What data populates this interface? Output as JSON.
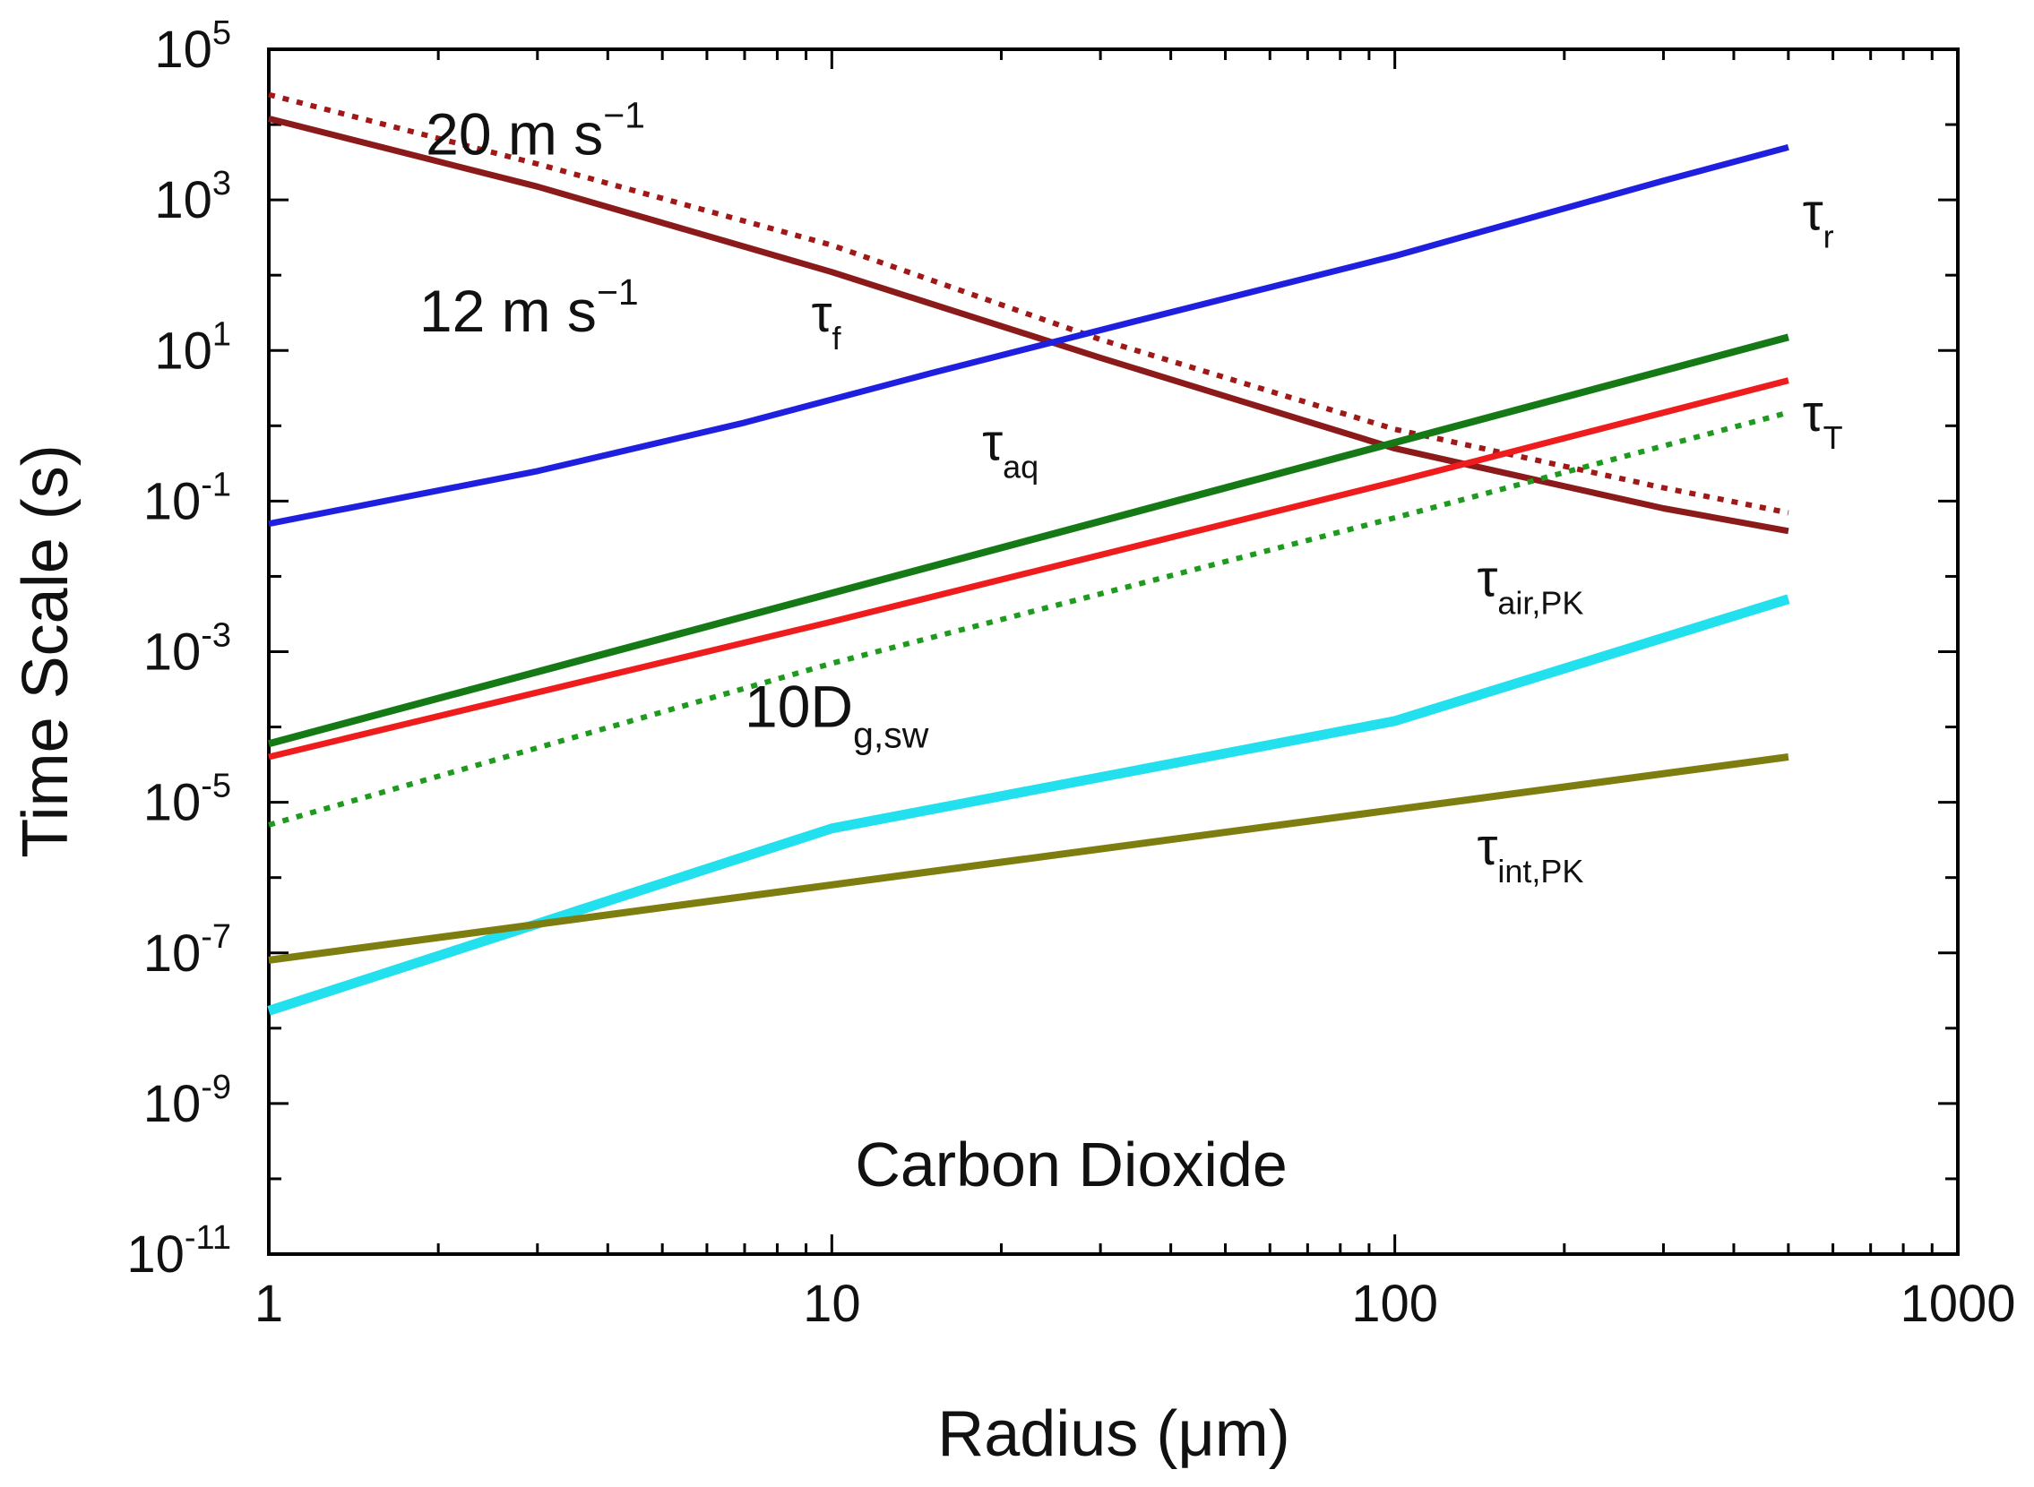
{
  "chart_data": {
    "type": "line",
    "title": "",
    "xlabel": "Radius (μm)",
    "ylabel": "Time Scale (s)",
    "xscale": "log",
    "yscale": "log",
    "xlim": [
      1,
      1000
    ],
    "ylim": [
      1e-11,
      100000
    ],
    "x_ticks": [
      {
        "value": 1,
        "label": "1"
      },
      {
        "value": 10,
        "label": "10"
      },
      {
        "value": 100,
        "label": "100"
      },
      {
        "value": 1000,
        "label": "1000"
      }
    ],
    "y_ticks": [
      {
        "value": 1e-11,
        "mantissa": "10",
        "exp": "-11"
      },
      {
        "value": 1e-09,
        "mantissa": "10",
        "exp": "-9"
      },
      {
        "value": 1e-07,
        "mantissa": "10",
        "exp": "-7"
      },
      {
        "value": 1e-05,
        "mantissa": "10",
        "exp": "-5"
      },
      {
        "value": 0.001,
        "mantissa": "10",
        "exp": "-3"
      },
      {
        "value": 0.1,
        "mantissa": "10",
        "exp": "-1"
      },
      {
        "value": 10,
        "mantissa": "10",
        "exp": "1"
      },
      {
        "value": 1000,
        "mantissa": "10",
        "exp": "3"
      },
      {
        "value": 100000,
        "mantissa": "10",
        "exp": "5"
      }
    ],
    "series": [
      {
        "name": "tau_f_20",
        "color": "#a01818",
        "dash": "dotted",
        "width": 6,
        "x": [
          1,
          3,
          10,
          30,
          100,
          300,
          500
        ],
        "y": [
          25000,
          3000,
          250,
          14,
          0.9,
          0.15,
          0.07
        ]
      },
      {
        "name": "tau_f_12",
        "color": "#8b1a1a",
        "dash": "solid",
        "width": 7,
        "x": [
          1,
          3,
          10,
          30,
          100,
          300,
          500
        ],
        "y": [
          12000,
          1500,
          110,
          8,
          0.5,
          0.08,
          0.04
        ]
      },
      {
        "name": "tau_r",
        "color": "#1f1fe0",
        "dash": "solid",
        "width": 7,
        "x": [
          1,
          3,
          7,
          15,
          35,
          100,
          300,
          500
        ],
        "y": [
          0.05,
          0.25,
          1.1,
          5,
          25,
          180,
          1800,
          5000
        ]
      },
      {
        "name": "tau_aq",
        "color": "#157a15",
        "dash": "solid",
        "width": 8,
        "x": [
          1,
          10,
          100,
          500
        ],
        "y": [
          6e-05,
          0.006,
          0.6,
          15
        ]
      },
      {
        "name": "tau_T",
        "color": "#ee1c1c",
        "dash": "solid",
        "width": 7,
        "x": [
          1,
          10,
          100,
          500
        ],
        "y": [
          4e-05,
          0.0025,
          0.18,
          4
        ]
      },
      {
        "name": "10D_g_sw",
        "color": "#1e9a1e",
        "dash": "dotted",
        "width": 6,
        "x": [
          1,
          10,
          100,
          500
        ],
        "y": [
          5e-06,
          0.0007,
          0.06,
          1.5
        ]
      },
      {
        "name": "tau_air_PK",
        "color": "#22e0ee",
        "dash": "solid",
        "width": 11,
        "x": [
          1,
          10,
          100,
          500
        ],
        "y": [
          1.7e-08,
          4.5e-06,
          0.00012,
          0.005
        ]
      },
      {
        "name": "tau_int_PK",
        "color": "#7e7e10",
        "dash": "solid",
        "width": 8,
        "x": [
          1,
          10,
          100,
          500
        ],
        "y": [
          8e-08,
          8e-07,
          8e-06,
          4e-05
        ]
      }
    ],
    "annotations": [
      {
        "name": "label-20ms",
        "x": 1.9,
        "y": 4000,
        "size": 66,
        "parts": [
          {
            "t": "20 m s",
            "k": "n"
          },
          {
            "t": "−1",
            "k": "sup"
          }
        ]
      },
      {
        "name": "label-12ms",
        "x": 1.85,
        "y": 18,
        "size": 66,
        "parts": [
          {
            "t": "12 m s",
            "k": "n"
          },
          {
            "t": "−1",
            "k": "sup"
          }
        ]
      },
      {
        "name": "label-tau-f",
        "x": 9.2,
        "y": 18,
        "size": 58,
        "parts": [
          {
            "t": "τ",
            "k": "n"
          },
          {
            "t": "f",
            "k": "sub"
          }
        ]
      },
      {
        "name": "label-tau-r",
        "x": 530,
        "y": 400,
        "size": 58,
        "parts": [
          {
            "t": "τ",
            "k": "n"
          },
          {
            "t": "r",
            "k": "sub"
          }
        ]
      },
      {
        "name": "label-tau-T",
        "x": 530,
        "y": 0.85,
        "size": 58,
        "parts": [
          {
            "t": "τ",
            "k": "n"
          },
          {
            "t": "T",
            "k": "sub"
          }
        ]
      },
      {
        "name": "label-tau-aq",
        "x": 18.5,
        "y": 0.35,
        "size": 58,
        "parts": [
          {
            "t": "τ",
            "k": "n"
          },
          {
            "t": "aq",
            "k": "sub"
          }
        ]
      },
      {
        "name": "label-10Dgsw",
        "x": 7,
        "y": 0.0001,
        "size": 66,
        "parts": [
          {
            "t": "10D",
            "k": "n"
          },
          {
            "t": "g,sw",
            "k": "sub"
          }
        ]
      },
      {
        "name": "label-tau-air-pk",
        "x": 140,
        "y": 0.0055,
        "size": 58,
        "parts": [
          {
            "t": "τ",
            "k": "n"
          },
          {
            "t": "air,PK",
            "k": "sub"
          }
        ]
      },
      {
        "name": "label-tau-int-pk",
        "x": 140,
        "y": 1.5e-06,
        "size": 58,
        "parts": [
          {
            "t": "τ",
            "k": "n"
          },
          {
            "t": "int,PK",
            "k": "sub"
          }
        ]
      },
      {
        "name": "label-carbon-dioxide",
        "x": 11,
        "y": 8e-11,
        "size": 70,
        "parts": [
          {
            "t": "Carbon Dioxide",
            "k": "n"
          }
        ]
      }
    ]
  }
}
